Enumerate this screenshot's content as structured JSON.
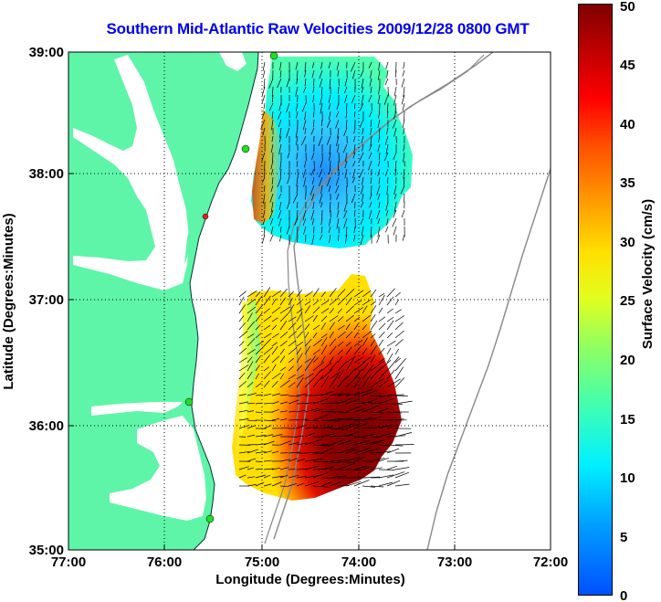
{
  "title": "Southern Mid-Atlantic Raw Velocities 2009/12/28 0800 GMT",
  "axes": {
    "xlabel": "Longitude (Degrees:Minutes)",
    "ylabel": "Latitude (Degrees:Minutes)",
    "xticks": [
      "77:00",
      "76:00",
      "75:00",
      "74:00",
      "73:00",
      "72:00"
    ],
    "yticks": [
      "39:00",
      "38:00",
      "37:00",
      "36:00",
      "35:00"
    ]
  },
  "colorbar": {
    "label": "Surface Velocity (cm/s)",
    "ticks": [
      "50",
      "45",
      "40",
      "35",
      "30",
      "25",
      "20",
      "15",
      "10",
      "5",
      "0"
    ],
    "range": [
      0,
      50
    ]
  },
  "colors": {
    "land": "#5ef5a8",
    "title": "#0000ee",
    "site_marker": "#22dd22",
    "site_marker_red": "#dd2222"
  },
  "grid": "dotted"
}
